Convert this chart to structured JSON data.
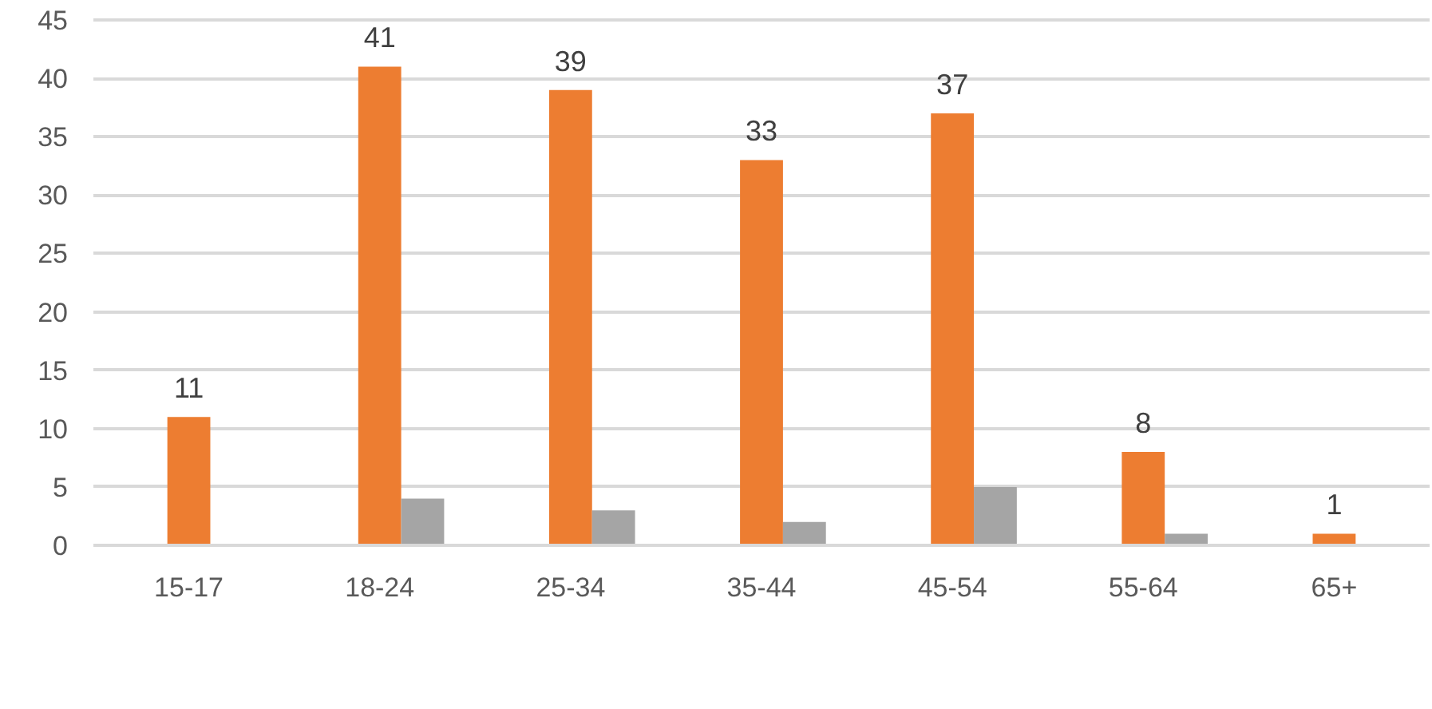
{
  "chart_data": {
    "type": "bar",
    "categories": [
      "15-17",
      "18-24",
      "25-34",
      "35-44",
      "45-54",
      "55-64",
      "65+"
    ],
    "ylim": [
      0,
      45
    ],
    "yticks": [
      0,
      5,
      10,
      15,
      20,
      25,
      30,
      35,
      40,
      45
    ],
    "grid": "y",
    "series": [
      {
        "values": [
          null,
          null,
          null,
          null,
          null,
          null,
          null
        ]
      },
      {
        "color": "#ed7d31",
        "values": [
          11,
          41,
          39,
          33,
          37,
          8,
          1
        ],
        "value_labels": [
          "11",
          "41",
          "39",
          "33",
          "37",
          "8",
          "1"
        ]
      },
      {
        "color": "#a5a5a5",
        "values": [
          null,
          4,
          3,
          2,
          5,
          1,
          null
        ]
      }
    ]
  }
}
